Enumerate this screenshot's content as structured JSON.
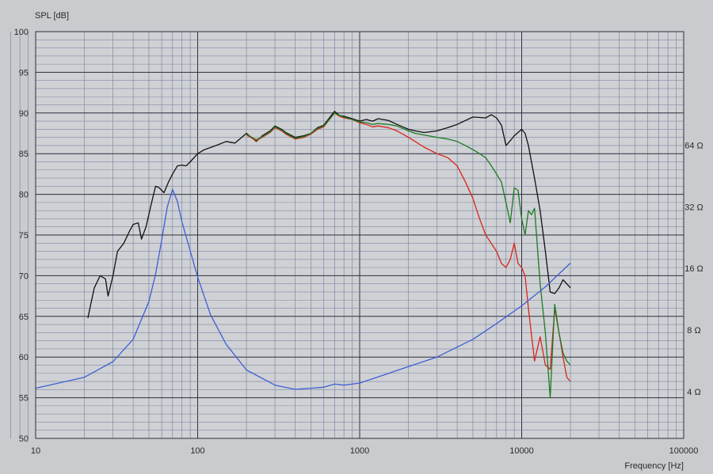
{
  "chart_data": {
    "type": "line",
    "ylabel": "SPL [dB]",
    "xlabel": "Frequency [Hz]",
    "x_scale": "log",
    "xlim": [
      10,
      100000
    ],
    "ylim": [
      50,
      100
    ],
    "x_ticks": [
      "10",
      "100",
      "1000",
      "10000",
      "100000"
    ],
    "y_ticks": [
      "50",
      "55",
      "60",
      "65",
      "70",
      "75",
      "80",
      "85",
      "90",
      "95",
      "100"
    ],
    "y2_scale": "log",
    "y2lim": [
      2.36,
      230
    ],
    "y2_ticks": [
      "4 Ω",
      "8 Ω",
      "16 Ω",
      "32 Ω",
      "64 Ω"
    ],
    "grid": true,
    "colors": {
      "background": "#c9cbce",
      "plot": "#cfd1d4",
      "grid_minor": "#7f8aa6",
      "grid_major": "#2c3040",
      "black": "#111111",
      "red": "#d8261c",
      "green": "#1f7a24",
      "blue": "#3f5fd6"
    },
    "series": [
      {
        "color": "black",
        "axis": "y",
        "x": [
          21,
          23,
          25,
          27,
          28,
          30,
          32,
          35,
          38,
          40,
          43,
          45,
          48,
          52,
          55,
          58,
          62,
          66,
          70,
          75,
          80,
          85,
          90,
          100,
          110,
          130,
          150,
          170,
          200,
          230,
          250,
          280,
          300,
          330,
          350,
          400,
          450,
          500,
          550,
          600,
          700,
          750,
          800,
          900,
          1000,
          1100,
          1200,
          1300,
          1500,
          1700,
          2000,
          2200,
          2500,
          3000,
          3500,
          4000,
          5000,
          6000,
          6500,
          7000,
          7500,
          8000,
          8500,
          9000,
          10000,
          10500,
          11000,
          12000,
          13000,
          14000,
          15000,
          16000,
          17000,
          18000,
          19000,
          20000
        ],
        "values": [
          64.8,
          68.5,
          70.0,
          69.6,
          67.5,
          70.0,
          73.0,
          74.0,
          75.5,
          76.3,
          76.5,
          74.5,
          76.0,
          79.0,
          81.0,
          80.8,
          80.2,
          81.5,
          82.5,
          83.5,
          83.6,
          83.5,
          84.0,
          85.0,
          85.5,
          86.0,
          86.5,
          86.3,
          87.5,
          86.5,
          87.2,
          87.8,
          88.4,
          88.0,
          87.6,
          87.0,
          87.2,
          87.5,
          88.2,
          88.5,
          90.2,
          89.7,
          89.6,
          89.3,
          89.0,
          89.2,
          89.0,
          89.3,
          89.1,
          88.6,
          88.0,
          87.8,
          87.6,
          87.8,
          88.2,
          88.6,
          89.5,
          89.4,
          89.8,
          89.4,
          88.5,
          86.0,
          86.6,
          87.2,
          88.0,
          87.5,
          86.0,
          82.0,
          78.0,
          73.0,
          68.0,
          67.8,
          68.5,
          69.5,
          69.0,
          68.5
        ]
      },
      {
        "color": "red",
        "axis": "y",
        "x": [
          200,
          230,
          250,
          280,
          300,
          330,
          350,
          400,
          450,
          500,
          550,
          600,
          700,
          750,
          800,
          900,
          1000,
          1100,
          1200,
          1300,
          1500,
          1700,
          2000,
          2200,
          2500,
          3000,
          3500,
          4000,
          4500,
          5000,
          5500,
          6000,
          7000,
          7500,
          8000,
          8500,
          9000,
          9500,
          10000,
          10500,
          11000,
          12000,
          13000,
          14000,
          15000,
          16000,
          17000,
          18000,
          19000,
          20000
        ],
        "values": [
          87.3,
          86.6,
          87.0,
          87.6,
          88.2,
          87.8,
          87.4,
          86.8,
          87.0,
          87.4,
          88.0,
          88.3,
          90.0,
          89.6,
          89.4,
          89.2,
          88.8,
          88.6,
          88.3,
          88.4,
          88.2,
          87.8,
          87.0,
          86.5,
          85.8,
          85.0,
          84.5,
          83.5,
          81.5,
          79.5,
          77.0,
          75.0,
          73.0,
          71.5,
          71.0,
          72.0,
          74.0,
          71.5,
          71.0,
          70.0,
          66.0,
          59.5,
          62.5,
          59.0,
          58.5,
          66.0,
          63.0,
          60.0,
          57.5,
          57.0
        ]
      },
      {
        "color": "green",
        "axis": "y",
        "x": [
          200,
          230,
          250,
          280,
          300,
          330,
          350,
          400,
          450,
          500,
          550,
          600,
          700,
          750,
          800,
          900,
          1000,
          1100,
          1200,
          1300,
          1500,
          1700,
          2000,
          2200,
          2500,
          3000,
          3500,
          4000,
          4500,
          5000,
          5500,
          6000,
          6500,
          7000,
          7500,
          8000,
          8500,
          9000,
          9500,
          10000,
          10500,
          11000,
          11500,
          12000,
          13000,
          14000,
          15000,
          16000,
          17000,
          18000,
          19000,
          20000
        ],
        "values": [
          87.4,
          86.7,
          87.1,
          87.7,
          88.3,
          87.9,
          87.5,
          86.9,
          87.1,
          87.5,
          88.1,
          88.4,
          90.0,
          89.7,
          89.5,
          89.2,
          88.9,
          88.8,
          88.6,
          88.7,
          88.6,
          88.4,
          87.8,
          87.5,
          87.3,
          87.0,
          86.8,
          86.5,
          86.0,
          85.5,
          85.0,
          84.5,
          83.5,
          82.5,
          81.5,
          79.0,
          76.5,
          80.8,
          80.5,
          77.0,
          75.0,
          78.0,
          77.5,
          78.3,
          69.0,
          63.0,
          55.0,
          66.5,
          63.0,
          60.5,
          59.5,
          59.0
        ]
      },
      {
        "color": "blue",
        "axis": "y2",
        "x": [
          10,
          20,
          30,
          40,
          50,
          55,
          60,
          65,
          70,
          75,
          80,
          90,
          100,
          120,
          150,
          200,
          300,
          400,
          500,
          600,
          700,
          800,
          1000,
          1500,
          2000,
          3000,
          5000,
          7000,
          10000,
          14000,
          20000
        ],
        "values": [
          4.15,
          4.7,
          5.6,
          7.2,
          11.0,
          15.0,
          22.0,
          32.0,
          39.0,
          34.0,
          27.0,
          19.5,
          14.5,
          9.5,
          6.8,
          5.1,
          4.3,
          4.1,
          4.15,
          4.2,
          4.35,
          4.3,
          4.4,
          4.9,
          5.3,
          5.9,
          7.2,
          8.6,
          10.5,
          13.0,
          17.0
        ]
      }
    ]
  }
}
